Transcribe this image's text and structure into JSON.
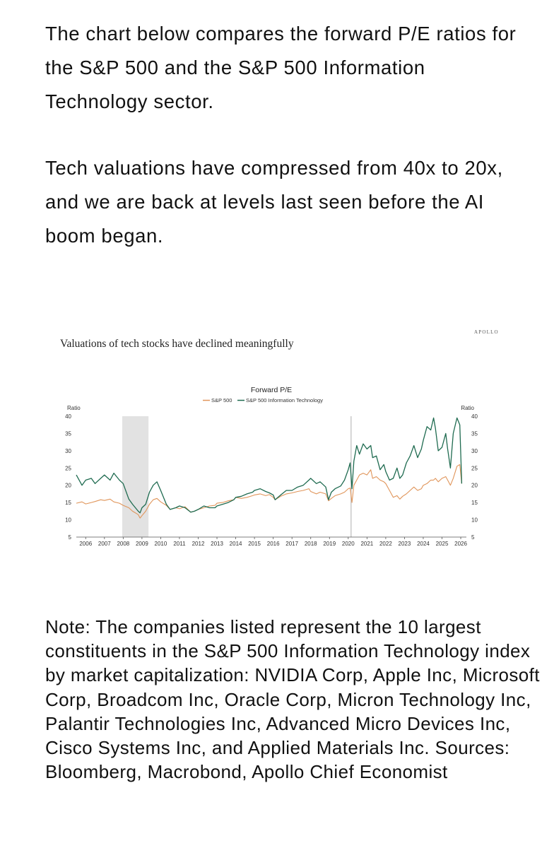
{
  "intro": {
    "p1": "The chart below compares the forward P/E ratios for the S&P 500 and the S&P 500 Information Technology sector.",
    "p2": "Tech valuations have compressed from 40x to 20x, and we are back at levels last seen before the AI boom began."
  },
  "brand": "APOLLO",
  "chart_heading": "Valuations of tech stocks have declined meaningfully",
  "note": "Note: The companies listed represent the 10 largest constituents in the S&P 500 Information Technology index by market capitalization: NVIDIA Corp, Apple Inc, Microsoft Corp, Broadcom Inc, Oracle Corp, Micron Technology Inc, Palantir Technologies Inc, Advanced Micro Devices Inc, Cisco Systems Inc, and Applied Materials Inc. Sources: Bloomberg, Macrobond, Apollo Chief Economist",
  "colors": {
    "sp500": "#e0955a",
    "tech": "#1f6b50",
    "shade": "#e2e2e2"
  },
  "chart_data": {
    "type": "line",
    "title": "Forward P/E",
    "ylabel_left": "Ratio",
    "ylabel_right": "Ratio",
    "xlabel": "",
    "ylim": [
      5,
      40
    ],
    "yticks": [
      5,
      10,
      15,
      20,
      25,
      30,
      35,
      40
    ],
    "xlim": [
      2005.5,
      2026.3
    ],
    "xticks": [
      "2006",
      "2007",
      "2008",
      "2009",
      "2010",
      "2011",
      "2012",
      "2013",
      "2014",
      "2015",
      "2016",
      "2017",
      "2018",
      "2019",
      "2020",
      "2021",
      "2022",
      "2023",
      "2024",
      "2025",
      "2026"
    ],
    "shaded_ranges": [
      [
        2007.95,
        2009.35
      ]
    ],
    "markers": [
      2020.15
    ],
    "x": [
      2005.5,
      2005.8,
      2006.0,
      2006.3,
      2006.5,
      2006.8,
      2007.0,
      2007.3,
      2007.5,
      2007.8,
      2008.0,
      2008.3,
      2008.5,
      2008.8,
      2008.9,
      2009.0,
      2009.2,
      2009.4,
      2009.6,
      2009.8,
      2010.0,
      2010.3,
      2010.5,
      2010.8,
      2011.0,
      2011.3,
      2011.6,
      2011.8,
      2012.0,
      2012.3,
      2012.6,
      2012.9,
      2013.0,
      2013.3,
      2013.6,
      2013.9,
      2014.0,
      2014.3,
      2014.6,
      2014.9,
      2015.0,
      2015.3,
      2015.6,
      2015.8,
      2016.0,
      2016.1,
      2016.4,
      2016.7,
      2017.0,
      2017.3,
      2017.6,
      2017.9,
      2018.0,
      2018.3,
      2018.5,
      2018.8,
      2018.95,
      2019.1,
      2019.3,
      2019.6,
      2019.8,
      2020.0,
      2020.1,
      2020.2,
      2020.3,
      2020.45,
      2020.6,
      2020.8,
      2021.0,
      2021.2,
      2021.3,
      2021.5,
      2021.7,
      2021.9,
      2022.0,
      2022.2,
      2022.4,
      2022.6,
      2022.75,
      2022.9,
      2023.1,
      2023.3,
      2023.5,
      2023.7,
      2023.9,
      2024.0,
      2024.2,
      2024.4,
      2024.55,
      2024.65,
      2024.8,
      2025.0,
      2025.2,
      2025.3,
      2025.45,
      2025.6,
      2025.8,
      2025.95,
      2026.05
    ],
    "series": [
      {
        "name": "S&P 500",
        "values": [
          14.8,
          15.2,
          14.6,
          15.0,
          15.3,
          15.8,
          15.6,
          16.0,
          15.2,
          14.8,
          14.2,
          13.5,
          12.5,
          11.5,
          10.5,
          11.2,
          12.5,
          14.5,
          15.8,
          16.2,
          15.2,
          14.2,
          13.0,
          13.5,
          13.2,
          13.8,
          12.2,
          12.5,
          13.0,
          13.5,
          14.0,
          14.2,
          14.8,
          15.0,
          15.5,
          15.8,
          16.5,
          16.2,
          16.5,
          17.0,
          17.2,
          17.5,
          17.0,
          17.3,
          16.5,
          15.8,
          16.8,
          17.5,
          17.8,
          18.2,
          18.5,
          19.0,
          18.2,
          17.5,
          18.0,
          17.5,
          15.5,
          16.2,
          17.0,
          17.5,
          18.0,
          19.0,
          19.2,
          15.0,
          20.0,
          21.5,
          23.0,
          23.5,
          23.0,
          24.5,
          22.0,
          22.5,
          21.5,
          21.0,
          20.5,
          18.5,
          16.5,
          17.0,
          16.0,
          16.8,
          17.5,
          18.5,
          19.5,
          18.5,
          19.0,
          20.0,
          20.5,
          21.5,
          21.5,
          22.0,
          21.0,
          22.0,
          22.5,
          21.5,
          20.0,
          22.0,
          25.5,
          26.0,
          20.5
        ]
      },
      {
        "name": "S&P 500 Information Technology",
        "values": [
          23.0,
          20.0,
          21.5,
          22.0,
          20.5,
          22.0,
          23.0,
          21.5,
          23.5,
          21.5,
          20.5,
          16.0,
          14.5,
          12.5,
          12.0,
          13.5,
          14.5,
          18.0,
          20.0,
          21.0,
          18.5,
          14.5,
          13.0,
          13.5,
          14.0,
          13.5,
          12.2,
          12.5,
          13.0,
          14.0,
          13.5,
          13.5,
          14.0,
          14.5,
          15.0,
          15.8,
          16.5,
          16.8,
          17.5,
          18.0,
          18.5,
          19.0,
          18.2,
          17.8,
          17.2,
          15.8,
          17.2,
          18.5,
          18.5,
          19.5,
          20.0,
          21.5,
          22.0,
          20.5,
          21.0,
          19.5,
          15.8,
          18.0,
          19.0,
          19.8,
          21.5,
          24.5,
          26.5,
          19.0,
          27.0,
          31.5,
          29.0,
          32.0,
          30.5,
          31.5,
          28.0,
          28.5,
          24.5,
          26.0,
          24.0,
          21.5,
          22.0,
          25.0,
          22.0,
          23.0,
          26.5,
          28.5,
          31.5,
          28.0,
          30.5,
          33.0,
          37.0,
          36.0,
          39.5,
          36.5,
          30.0,
          31.0,
          35.0,
          30.5,
          25.0,
          35.0,
          39.5,
          37.5,
          20.5
        ]
      }
    ]
  }
}
